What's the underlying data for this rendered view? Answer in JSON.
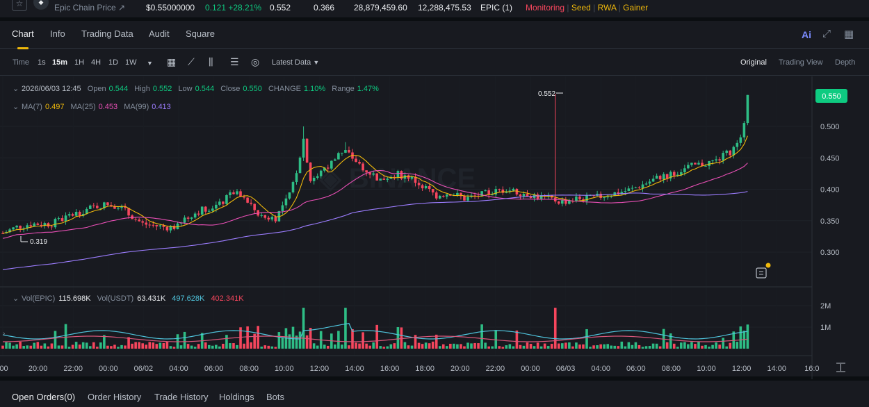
{
  "ticker": {
    "name": "Epic Chain Price",
    "price": "$0.55000000",
    "change": "0.121 +28.21%",
    "high": "0.552",
    "low": "0.366",
    "vol_base": "28,879,459.60",
    "vol_quote": "12,288,475.53",
    "pair": "EPIC (1)",
    "tags": [
      "Monitoring",
      "Seed",
      "RWA",
      "Gainer"
    ]
  },
  "tabs": [
    "Chart",
    "Info",
    "Trading Data",
    "Audit",
    "Square"
  ],
  "ai_label": "Ai",
  "toolbar": {
    "intervals": [
      "Time",
      "1s",
      "15m",
      "1H",
      "4H",
      "1D",
      "1W"
    ],
    "selected_interval": "15m",
    "latest_data": "Latest Data",
    "views": [
      "Original",
      "Trading View",
      "Depth"
    ]
  },
  "ohlc": {
    "date": "2026/06/03 12:45",
    "open_label": "Open",
    "open": "0.544",
    "high_label": "High",
    "high": "0.552",
    "low_label": "Low",
    "low": "0.544",
    "close_label": "Close",
    "close": "0.550",
    "change_label": "CHANGE",
    "change": "1.10%",
    "range_label": "Range",
    "range": "1.47%"
  },
  "ma": {
    "ma7_label": "MA(7)",
    "ma7": "0.497",
    "ma25_label": "MA(25)",
    "ma25": "0.453",
    "ma99_label": "MA(99)",
    "ma99": "0.413"
  },
  "vol": {
    "base_label": "Vol(EPIC)",
    "base": "115.698K",
    "quote_label": "Vol(USDT)",
    "quote": "63.431K",
    "ma1": "497.628K",
    "ma2": "402.341K"
  },
  "chart_data": {
    "type": "candlestick",
    "price_ticks": [
      "0.500",
      "0.450",
      "0.400",
      "0.350",
      "0.300"
    ],
    "price_tick_values": [
      0.5,
      0.45,
      0.4,
      0.35,
      0.3
    ],
    "vol_ticks": [
      "2M",
      "1M"
    ],
    "vol_tick_values": [
      2000000,
      1000000
    ],
    "current_price": "0.550",
    "high_marker": "0.552",
    "low_marker": "0.319",
    "time_ticks": [
      ":00",
      "20:00",
      "22:00",
      "00:00",
      "06/02",
      "04:00",
      "06:00",
      "08:00",
      "10:00",
      "12:00",
      "14:00",
      "16:00",
      "18:00",
      "20:00",
      "22:00",
      "00:00",
      "06/03",
      "04:00",
      "06:00",
      "08:00",
      "10:00",
      "12:00",
      "14:00",
      "16:0"
    ],
    "price_anchors": [
      [
        0,
        0.33
      ],
      [
        4,
        0.34
      ],
      [
        8,
        0.345
      ],
      [
        14,
        0.345
      ],
      [
        20,
        0.36
      ],
      [
        28,
        0.375
      ],
      [
        33,
        0.375
      ],
      [
        36,
        0.36
      ],
      [
        40,
        0.345
      ],
      [
        46,
        0.34
      ],
      [
        50,
        0.34
      ],
      [
        54,
        0.36
      ],
      [
        58,
        0.37
      ],
      [
        62,
        0.375
      ],
      [
        66,
        0.395
      ],
      [
        70,
        0.38
      ],
      [
        74,
        0.355
      ],
      [
        78,
        0.355
      ],
      [
        82,
        0.39
      ],
      [
        84,
        0.43
      ],
      [
        86,
        0.48
      ],
      [
        88,
        0.415
      ],
      [
        92,
        0.43
      ],
      [
        96,
        0.455
      ],
      [
        98,
        0.46
      ],
      [
        100,
        0.45
      ],
      [
        104,
        0.43
      ],
      [
        108,
        0.415
      ],
      [
        112,
        0.425
      ],
      [
        116,
        0.42
      ],
      [
        120,
        0.405
      ],
      [
        124,
        0.39
      ],
      [
        128,
        0.395
      ],
      [
        132,
        0.385
      ],
      [
        136,
        0.39
      ],
      [
        140,
        0.395
      ],
      [
        144,
        0.4
      ],
      [
        148,
        0.395
      ],
      [
        152,
        0.39
      ],
      [
        156,
        0.385
      ],
      [
        160,
        0.38
      ],
      [
        164,
        0.385
      ],
      [
        168,
        0.385
      ],
      [
        172,
        0.39
      ],
      [
        176,
        0.395
      ],
      [
        180,
        0.4
      ],
      [
        184,
        0.41
      ],
      [
        188,
        0.42
      ],
      [
        192,
        0.425
      ],
      [
        196,
        0.435
      ],
      [
        200,
        0.44
      ],
      [
        204,
        0.445
      ],
      [
        208,
        0.46
      ],
      [
        210,
        0.47
      ],
      [
        212,
        0.505
      ],
      [
        213,
        0.55
      ]
    ],
    "spikes": [
      [
        158,
        0.552
      ],
      [
        86,
        0.5
      ],
      [
        98,
        0.475
      ]
    ]
  },
  "bottom_tabs": [
    "Open Orders(0)",
    "Order History",
    "Trade History",
    "Holdings",
    "Bots"
  ]
}
